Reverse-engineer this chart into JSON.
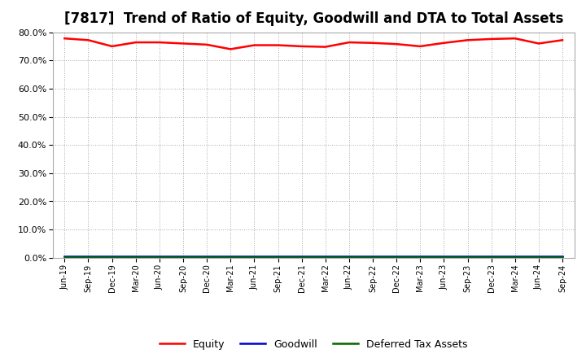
{
  "title": "[7817]  Trend of Ratio of Equity, Goodwill and DTA to Total Assets",
  "x_labels": [
    "Jun-19",
    "Sep-19",
    "Dec-19",
    "Mar-20",
    "Jun-20",
    "Sep-20",
    "Dec-20",
    "Mar-21",
    "Jun-21",
    "Sep-21",
    "Dec-21",
    "Mar-22",
    "Jun-22",
    "Sep-22",
    "Dec-22",
    "Mar-23",
    "Jun-23",
    "Sep-23",
    "Dec-23",
    "Mar-24",
    "Jun-24",
    "Sep-24"
  ],
  "equity": [
    0.778,
    0.772,
    0.75,
    0.764,
    0.764,
    0.76,
    0.756,
    0.74,
    0.754,
    0.754,
    0.75,
    0.748,
    0.764,
    0.762,
    0.758,
    0.75,
    0.762,
    0.772,
    0.776,
    0.778,
    0.76,
    0.772
  ],
  "goodwill": [
    0.004,
    0.004,
    0.004,
    0.004,
    0.004,
    0.004,
    0.004,
    0.004,
    0.004,
    0.004,
    0.004,
    0.004,
    0.004,
    0.004,
    0.004,
    0.004,
    0.004,
    0.004,
    0.004,
    0.004,
    0.004,
    0.004
  ],
  "dta": [
    0.002,
    0.002,
    0.002,
    0.002,
    0.002,
    0.002,
    0.002,
    0.002,
    0.002,
    0.002,
    0.002,
    0.002,
    0.002,
    0.002,
    0.002,
    0.002,
    0.002,
    0.002,
    0.002,
    0.002,
    0.002,
    0.002
  ],
  "equity_color": "#FF0000",
  "goodwill_color": "#0000CC",
  "dta_color": "#006600",
  "ylim": [
    0.0,
    0.8
  ],
  "yticks": [
    0.0,
    0.1,
    0.2,
    0.3,
    0.4,
    0.5,
    0.6,
    0.7,
    0.8
  ],
  "bg_color": "#FFFFFF",
  "plot_bg_color": "#FFFFFF",
  "grid_color": "#AAAAAA",
  "title_fontsize": 12,
  "legend_labels": [
    "Equity",
    "Goodwill",
    "Deferred Tax Assets"
  ]
}
